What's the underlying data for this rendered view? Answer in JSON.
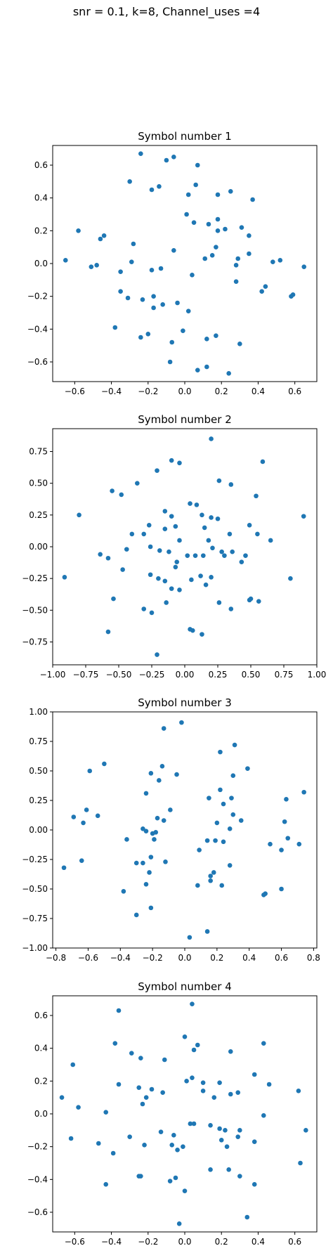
{
  "figure": {
    "title": "snr = 0.1, k=8, Channel_uses =4"
  },
  "chart_data": [
    {
      "type": "scatter",
      "title": "Symbol number 1",
      "color": "#1f77b4",
      "xlim": [
        -0.72,
        0.72
      ],
      "ylim": [
        -0.72,
        0.72
      ],
      "xticks": [
        -0.6,
        -0.4,
        -0.2,
        0.0,
        0.2,
        0.4,
        0.6
      ],
      "xticklabels": [
        "−0.6",
        "−0.4",
        "−0.2",
        "0.0",
        "0.2",
        "0.4",
        "0.6"
      ],
      "yticks": [
        -0.6,
        -0.4,
        -0.2,
        0.0,
        0.2,
        0.4,
        0.6
      ],
      "yticklabels": [
        "−0.6",
        "−0.4",
        "−0.2",
        "0.0",
        "0.2",
        "0.4",
        "0.6"
      ],
      "points": [
        [
          -0.24,
          0.67
        ],
        [
          -0.06,
          0.65
        ],
        [
          -0.1,
          0.63
        ],
        [
          0.07,
          0.6
        ],
        [
          -0.3,
          0.5
        ],
        [
          -0.14,
          0.47
        ],
        [
          0.06,
          0.48
        ],
        [
          -0.18,
          0.45
        ],
        [
          0.18,
          0.42
        ],
        [
          0.25,
          0.44
        ],
        [
          0.02,
          0.42
        ],
        [
          0.37,
          0.39
        ],
        [
          -0.58,
          0.2
        ],
        [
          -0.44,
          0.17
        ],
        [
          -0.46,
          0.15
        ],
        [
          -0.28,
          0.12
        ],
        [
          0.01,
          0.3
        ],
        [
          0.05,
          0.25
        ],
        [
          0.13,
          0.24
        ],
        [
          0.18,
          0.27
        ],
        [
          0.18,
          0.2
        ],
        [
          0.22,
          0.21
        ],
        [
          0.31,
          0.22
        ],
        [
          0.35,
          0.17
        ],
        [
          -0.65,
          0.02
        ],
        [
          -0.51,
          -0.02
        ],
        [
          -0.48,
          -0.01
        ],
        [
          -0.29,
          0.01
        ],
        [
          -0.35,
          -0.05
        ],
        [
          -0.06,
          0.08
        ],
        [
          0.11,
          0.03
        ],
        [
          0.15,
          0.05
        ],
        [
          0.17,
          0.1
        ],
        [
          0.29,
          0.03
        ],
        [
          0.35,
          0.06
        ],
        [
          0.48,
          0.01
        ],
        [
          0.52,
          0.02
        ],
        [
          0.65,
          -0.02
        ],
        [
          -0.18,
          -0.04
        ],
        [
          -0.13,
          -0.03
        ],
        [
          0.04,
          -0.07
        ],
        [
          0.28,
          -0.01
        ],
        [
          0.28,
          -0.11
        ],
        [
          0.44,
          -0.14
        ],
        [
          0.42,
          -0.17
        ],
        [
          0.59,
          -0.19
        ],
        [
          0.58,
          -0.2
        ],
        [
          -0.35,
          -0.17
        ],
        [
          -0.31,
          -0.21
        ],
        [
          -0.23,
          -0.22
        ],
        [
          -0.17,
          -0.2
        ],
        [
          -0.17,
          -0.27
        ],
        [
          -0.12,
          -0.25
        ],
        [
          -0.04,
          -0.24
        ],
        [
          0.02,
          -0.29
        ],
        [
          -0.38,
          -0.39
        ],
        [
          -0.24,
          -0.45
        ],
        [
          -0.2,
          -0.43
        ],
        [
          -0.01,
          -0.41
        ],
        [
          0.17,
          -0.44
        ],
        [
          0.12,
          -0.46
        ],
        [
          -0.08,
          -0.6
        ],
        [
          -0.07,
          -0.48
        ],
        [
          0.3,
          -0.49
        ],
        [
          0.07,
          -0.65
        ],
        [
          0.12,
          -0.63
        ],
        [
          0.24,
          -0.67
        ]
      ]
    },
    {
      "type": "scatter",
      "title": "Symbol number 2",
      "color": "#1f77b4",
      "xlim": [
        -1.0,
        1.0
      ],
      "ylim": [
        -0.93,
        0.93
      ],
      "xticks": [
        -1.0,
        -0.75,
        -0.5,
        -0.25,
        0.0,
        0.25,
        0.5,
        0.75,
        1.0
      ],
      "xticklabels": [
        "−1.00",
        "−0.75",
        "−0.50",
        "−0.25",
        "0.00",
        "0.25",
        "0.50",
        "0.75",
        "1.00"
      ],
      "yticks": [
        -0.75,
        -0.5,
        -0.25,
        0.0,
        0.25,
        0.5,
        0.75
      ],
      "yticklabels": [
        "−0.75",
        "−0.50",
        "−0.25",
        "0.00",
        "0.25",
        "0.50",
        "0.75"
      ],
      "points": [
        [
          0.2,
          0.85
        ],
        [
          -0.1,
          0.68
        ],
        [
          -0.04,
          0.66
        ],
        [
          0.59,
          0.67
        ],
        [
          -0.21,
          0.6
        ],
        [
          -0.36,
          0.5
        ],
        [
          -0.55,
          0.44
        ],
        [
          -0.48,
          0.41
        ],
        [
          0.26,
          0.52
        ],
        [
          0.35,
          0.49
        ],
        [
          0.54,
          0.4
        ],
        [
          -0.8,
          0.25
        ],
        [
          -0.15,
          0.28
        ],
        [
          0.04,
          0.34
        ],
        [
          0.09,
          0.33
        ],
        [
          0.13,
          0.25
        ],
        [
          0.2,
          0.23
        ],
        [
          0.25,
          0.22
        ],
        [
          0.9,
          0.24
        ],
        [
          -0.1,
          0.24
        ],
        [
          -0.27,
          0.17
        ],
        [
          -0.4,
          0.1
        ],
        [
          -0.31,
          0.1
        ],
        [
          -0.15,
          0.14
        ],
        [
          -0.07,
          0.16
        ],
        [
          0.15,
          0.15
        ],
        [
          0.34,
          0.1
        ],
        [
          0.49,
          0.17
        ],
        [
          0.55,
          0.1
        ],
        [
          0.65,
          0.05
        ],
        [
          -0.04,
          0.05
        ],
        [
          0.18,
          0.05
        ],
        [
          -0.26,
          0.0
        ],
        [
          -0.44,
          -0.02
        ],
        [
          -0.64,
          -0.06
        ],
        [
          -0.58,
          -0.09
        ],
        [
          -0.47,
          -0.18
        ],
        [
          -0.19,
          -0.03
        ],
        [
          -0.12,
          -0.04
        ],
        [
          -0.06,
          -0.12
        ],
        [
          0.02,
          -0.07
        ],
        [
          0.08,
          -0.07
        ],
        [
          0.14,
          -0.07
        ],
        [
          0.21,
          -0.01
        ],
        [
          0.28,
          -0.04
        ],
        [
          0.36,
          -0.04
        ],
        [
          0.43,
          -0.12
        ],
        [
          0.46,
          -0.07
        ],
        [
          0.3,
          -0.07
        ],
        [
          -0.91,
          -0.24
        ],
        [
          -0.26,
          -0.22
        ],
        [
          -0.2,
          -0.25
        ],
        [
          -0.15,
          -0.27
        ],
        [
          -0.07,
          -0.16
        ],
        [
          -0.1,
          -0.33
        ],
        [
          -0.04,
          -0.34
        ],
        [
          0.05,
          -0.26
        ],
        [
          0.12,
          -0.23
        ],
        [
          0.16,
          -0.3
        ],
        [
          0.2,
          -0.24
        ],
        [
          0.8,
          -0.25
        ],
        [
          -0.54,
          -0.41
        ],
        [
          -0.14,
          -0.44
        ],
        [
          0.26,
          -0.44
        ],
        [
          0.35,
          -0.49
        ],
        [
          0.49,
          -0.42
        ],
        [
          0.5,
          -0.41
        ],
        [
          0.56,
          -0.43
        ],
        [
          -0.31,
          -0.49
        ],
        [
          -0.25,
          -0.52
        ],
        [
          -0.58,
          -0.67
        ],
        [
          0.06,
          -0.66
        ],
        [
          0.04,
          -0.65
        ],
        [
          0.13,
          -0.69
        ],
        [
          -0.21,
          -0.85
        ]
      ]
    },
    {
      "type": "scatter",
      "title": "Symbol number 3",
      "color": "#1f77b4",
      "xlim": [
        -0.82,
        0.82
      ],
      "ylim": [
        -1.0,
        1.0
      ],
      "xticks": [
        -0.8,
        -0.6,
        -0.4,
        -0.2,
        0.0,
        0.2,
        0.4,
        0.6,
        0.8
      ],
      "xticklabels": [
        "−0.8",
        "−0.6",
        "−0.4",
        "−0.2",
        "0.0",
        "0.2",
        "0.4",
        "0.6",
        "0.8"
      ],
      "yticks": [
        -1.0,
        -0.75,
        -0.5,
        -0.25,
        0.0,
        0.25,
        0.5,
        0.75,
        1.0
      ],
      "yticklabels": [
        "−1.00",
        "−0.75",
        "−0.50",
        "−0.25",
        "0.00",
        "0.25",
        "0.50",
        "0.75",
        "1.00"
      ],
      "points": [
        [
          -0.02,
          0.91
        ],
        [
          -0.13,
          0.86
        ],
        [
          0.31,
          0.72
        ],
        [
          0.22,
          0.66
        ],
        [
          -0.5,
          0.56
        ],
        [
          -0.14,
          0.54
        ],
        [
          0.39,
          0.52
        ],
        [
          -0.59,
          0.5
        ],
        [
          -0.21,
          0.48
        ],
        [
          -0.16,
          0.42
        ],
        [
          -0.05,
          0.47
        ],
        [
          0.3,
          0.46
        ],
        [
          0.22,
          0.34
        ],
        [
          0.29,
          0.27
        ],
        [
          0.15,
          0.27
        ],
        [
          0.74,
          0.32
        ],
        [
          -0.24,
          0.31
        ],
        [
          0.63,
          0.26
        ],
        [
          -0.61,
          0.17
        ],
        [
          -0.09,
          0.17
        ],
        [
          0.24,
          0.22
        ],
        [
          -0.69,
          0.11
        ],
        [
          -0.54,
          0.12
        ],
        [
          -0.63,
          0.06
        ],
        [
          -0.17,
          0.1
        ],
        [
          -0.13,
          0.08
        ],
        [
          0.35,
          0.08
        ],
        [
          0.3,
          0.13
        ],
        [
          0.62,
          0.07
        ],
        [
          -0.26,
          0.01
        ],
        [
          -0.24,
          -0.01
        ],
        [
          -0.18,
          -0.02
        ],
        [
          -0.2,
          -0.03
        ],
        [
          0.2,
          0.06
        ],
        [
          0.28,
          0.01
        ],
        [
          -0.36,
          -0.08
        ],
        [
          -0.19,
          -0.08
        ],
        [
          0.19,
          -0.09
        ],
        [
          0.53,
          -0.12
        ],
        [
          0.71,
          -0.12
        ],
        [
          0.64,
          -0.07
        ],
        [
          0.6,
          -0.17
        ],
        [
          0.24,
          -0.1
        ],
        [
          0.14,
          -0.09
        ],
        [
          0.09,
          -0.17
        ],
        [
          -0.75,
          -0.32
        ],
        [
          -0.64,
          -0.26
        ],
        [
          -0.3,
          -0.28
        ],
        [
          -0.26,
          -0.28
        ],
        [
          -0.21,
          -0.23
        ],
        [
          -0.22,
          -0.36
        ],
        [
          -0.12,
          -0.27
        ],
        [
          0.18,
          -0.36
        ],
        [
          0.16,
          -0.39
        ],
        [
          0.16,
          -0.43
        ],
        [
          0.28,
          -0.3
        ],
        [
          -0.38,
          -0.52
        ],
        [
          -0.24,
          -0.46
        ],
        [
          0.08,
          -0.47
        ],
        [
          0.23,
          -0.47
        ],
        [
          0.49,
          -0.55
        ],
        [
          0.5,
          -0.54
        ],
        [
          0.6,
          -0.5
        ],
        [
          -0.21,
          -0.66
        ],
        [
          -0.3,
          -0.72
        ],
        [
          0.03,
          -0.91
        ],
        [
          0.14,
          -0.86
        ]
      ]
    },
    {
      "type": "scatter",
      "title": "Symbol number 4",
      "color": "#1f77b4",
      "xlim": [
        -0.72,
        0.72
      ],
      "ylim": [
        -0.72,
        0.72
      ],
      "xticks": [
        -0.6,
        -0.4,
        -0.2,
        0.0,
        0.2,
        0.4,
        0.6
      ],
      "xticklabels": [
        "−0.6",
        "−0.4",
        "−0.2",
        "0.0",
        "0.2",
        "0.4",
        "0.6"
      ],
      "yticks": [
        -0.6,
        -0.4,
        -0.2,
        0.0,
        0.2,
        0.4,
        0.6
      ],
      "yticklabels": [
        "−0.6",
        "−0.4",
        "−0.2",
        "0.0",
        "0.2",
        "0.4",
        "0.6"
      ],
      "points": [
        [
          0.04,
          0.67
        ],
        [
          -0.36,
          0.63
        ],
        [
          0.0,
          0.47
        ],
        [
          -0.38,
          0.43
        ],
        [
          0.43,
          0.43
        ],
        [
          0.07,
          0.42
        ],
        [
          0.05,
          0.39
        ],
        [
          0.25,
          0.38
        ],
        [
          -0.61,
          0.3
        ],
        [
          -0.29,
          0.37
        ],
        [
          -0.24,
          0.34
        ],
        [
          -0.11,
          0.33
        ],
        [
          0.04,
          0.22
        ],
        [
          0.01,
          0.2
        ],
        [
          0.1,
          0.19
        ],
        [
          0.19,
          0.19
        ],
        [
          0.38,
          0.24
        ],
        [
          0.46,
          0.18
        ],
        [
          -0.36,
          0.18
        ],
        [
          -0.25,
          0.16
        ],
        [
          -0.18,
          0.15
        ],
        [
          -0.21,
          0.1
        ],
        [
          -0.12,
          0.13
        ],
        [
          -0.23,
          0.06
        ],
        [
          0.1,
          0.14
        ],
        [
          0.16,
          0.1
        ],
        [
          0.25,
          0.12
        ],
        [
          0.29,
          0.13
        ],
        [
          -0.67,
          0.1
        ],
        [
          -0.58,
          0.04
        ],
        [
          0.62,
          0.14
        ],
        [
          -0.43,
          0.01
        ],
        [
          0.43,
          -0.01
        ],
        [
          -0.62,
          -0.15
        ],
        [
          -0.47,
          -0.18
        ],
        [
          -0.3,
          -0.14
        ],
        [
          -0.22,
          -0.19
        ],
        [
          -0.13,
          -0.11
        ],
        [
          -0.06,
          -0.13
        ],
        [
          0.03,
          -0.06
        ],
        [
          0.05,
          -0.06
        ],
        [
          0.14,
          -0.07
        ],
        [
          0.19,
          -0.09
        ],
        [
          0.22,
          -0.1
        ],
        [
          0.3,
          -0.1
        ],
        [
          0.38,
          -0.17
        ],
        [
          0.66,
          -0.1
        ],
        [
          -0.39,
          -0.24
        ],
        [
          -0.07,
          -0.19
        ],
        [
          -0.01,
          -0.2
        ],
        [
          -0.04,
          -0.22
        ],
        [
          0.2,
          -0.16
        ],
        [
          0.23,
          -0.2
        ],
        [
          0.29,
          -0.14
        ],
        [
          -0.25,
          -0.38
        ],
        [
          -0.24,
          -0.38
        ],
        [
          -0.08,
          -0.41
        ],
        [
          -0.05,
          -0.39
        ],
        [
          0.14,
          -0.34
        ],
        [
          0.24,
          -0.34
        ],
        [
          0.3,
          -0.38
        ],
        [
          0.38,
          -0.43
        ],
        [
          0.63,
          -0.3
        ],
        [
          -0.43,
          -0.43
        ],
        [
          0.0,
          -0.47
        ],
        [
          0.34,
          -0.63
        ],
        [
          -0.03,
          -0.67
        ]
      ]
    }
  ]
}
